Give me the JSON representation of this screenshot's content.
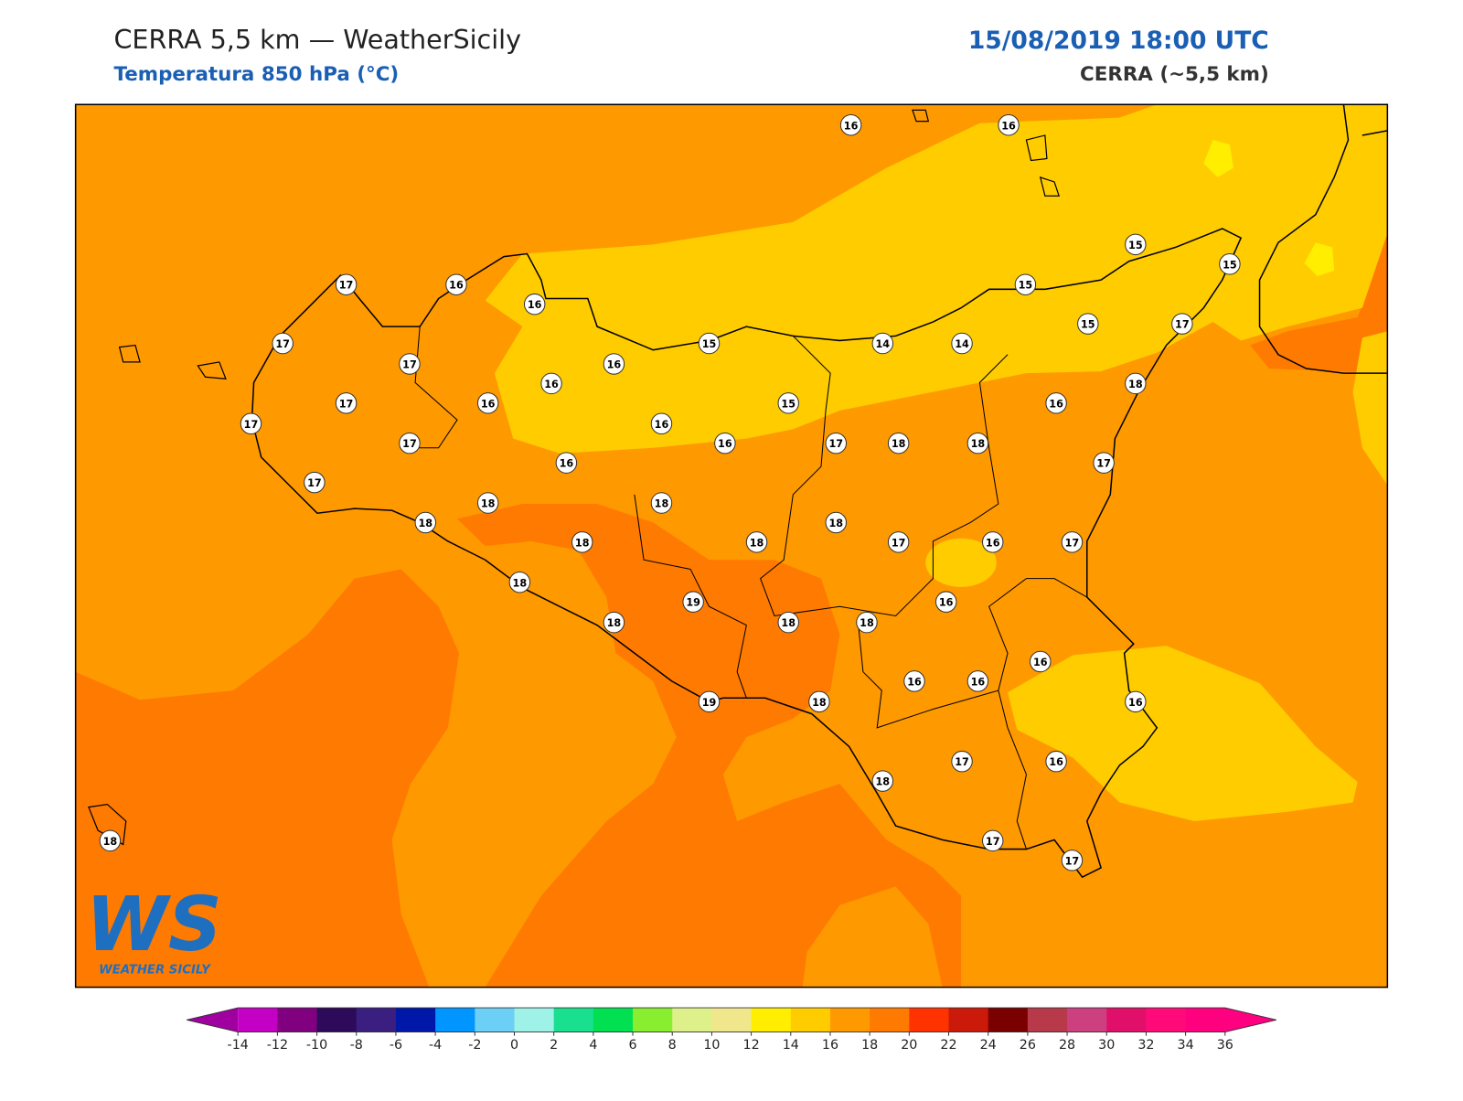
{
  "header": {
    "title": "CERRA 5,5 km — WeatherSicily",
    "subtitle": "Temperatura 850 hPa (°C)",
    "datetime": "15/08/2019 18:00 UTC",
    "model": "CERRA (~5,5 km)"
  },
  "stations": [
    16,
    16,
    15,
    15,
    17,
    16,
    16,
    15,
    17,
    17,
    16,
    15,
    14,
    14,
    15,
    17,
    16,
    18,
    17,
    16,
    15,
    16,
    17,
    16,
    17,
    16,
    17,
    18,
    18,
    16,
    17,
    17,
    18,
    18,
    18,
    18,
    18,
    18,
    17,
    16,
    17,
    18,
    16,
    19,
    18,
    18,
    18,
    16,
    16,
    16,
    16,
    19,
    18,
    17,
    16,
    18,
    18,
    17,
    17
  ],
  "colorbar": {
    "ticks": [
      -14,
      -12,
      -10,
      -8,
      -6,
      -4,
      -2,
      0,
      2,
      4,
      6,
      8,
      10,
      12,
      14,
      16,
      18,
      20,
      22,
      24,
      26,
      28,
      30,
      32,
      34,
      36
    ],
    "colors": [
      "#c400c4",
      "#800080",
      "#2e0a5a",
      "#3a1f80",
      "#0018a8",
      "#0095ff",
      "#6ccff6",
      "#9ef2e8",
      "#19e08f",
      "#00e050",
      "#8aee30",
      "#ddf08a",
      "#f0e68c",
      "#ffee00",
      "#ffcc00",
      "#ff9900",
      "#ff7a00",
      "#ff3300",
      "#cc1a0a",
      "#7a0000",
      "#b83a4a",
      "#cc4080",
      "#e0106a",
      "#ff0a78",
      "#ff007f"
    ],
    "under": "#a000a0",
    "over": "#ff0080"
  },
  "logo": {
    "mark": "WS",
    "text": "WEATHER SICILY"
  }
}
